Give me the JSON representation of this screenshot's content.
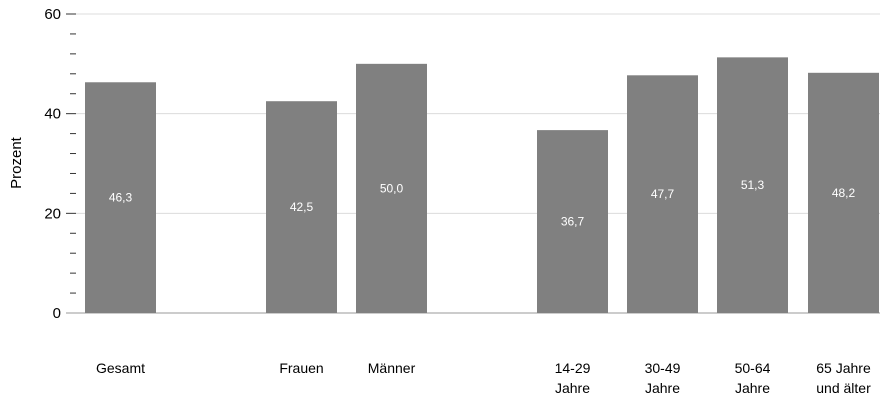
{
  "chart_data": {
    "type": "bar",
    "ylabel": "Prozent",
    "ylim": [
      0,
      60
    ],
    "yticks": [
      0,
      20,
      40,
      60
    ],
    "grid": true,
    "legend": "none",
    "categories": [
      [
        "Gesamt"
      ],
      [
        "Frauen"
      ],
      [
        "Männer"
      ],
      [
        "14-29",
        "Jahre"
      ],
      [
        "30-49",
        "Jahre"
      ],
      [
        "50-64",
        "Jahre"
      ],
      [
        "65 Jahre",
        "und älter"
      ]
    ],
    "values": [
      46.3,
      42.5,
      50.0,
      36.7,
      47.7,
      51.3,
      48.2
    ],
    "value_labels": [
      "46,3",
      "42,5",
      "50,0",
      "36,7",
      "47,7",
      "51,3",
      "48,2"
    ],
    "colors": {
      "bar": "#808080",
      "grid": "#dcdcdc",
      "axis": "#333333",
      "bar_label": "#ffffff"
    }
  }
}
